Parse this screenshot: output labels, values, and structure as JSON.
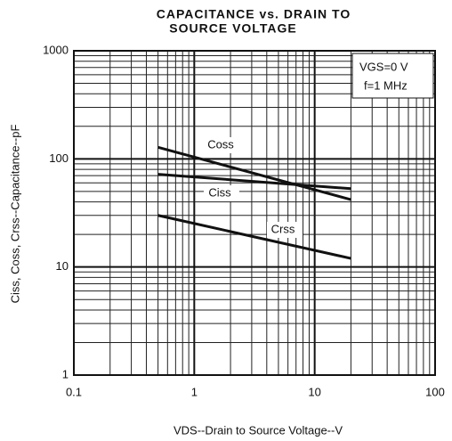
{
  "chart_data": {
    "type": "line",
    "title": [
      "CAPACITANCE vs. DRAIN TO",
      "SOURCE VOLTAGE"
    ],
    "x_label": "VDS--Drain to Source Voltage--V",
    "y_label": "Ciss, Coss, Crss--Capacitance--pF",
    "annotations": [
      "VGS=0 V",
      "f=1 MHz"
    ],
    "x": [
      0.5,
      20
    ],
    "series": [
      {
        "name": "Coss",
        "color": "#111111",
        "values": [
          128,
          42
        ]
      },
      {
        "name": "Ciss",
        "color": "#111111",
        "values": [
          72,
          53
        ]
      },
      {
        "name": "Crss",
        "color": "#111111",
        "values": [
          30,
          12
        ]
      }
    ],
    "log_x": true,
    "log_y": true,
    "grid": true,
    "xlim": [
      0.1,
      100
    ],
    "xticks": [
      0.1,
      1,
      10,
      100
    ],
    "ylim": [
      1,
      1000
    ],
    "yticks": [
      1,
      10,
      100,
      1000
    ]
  }
}
